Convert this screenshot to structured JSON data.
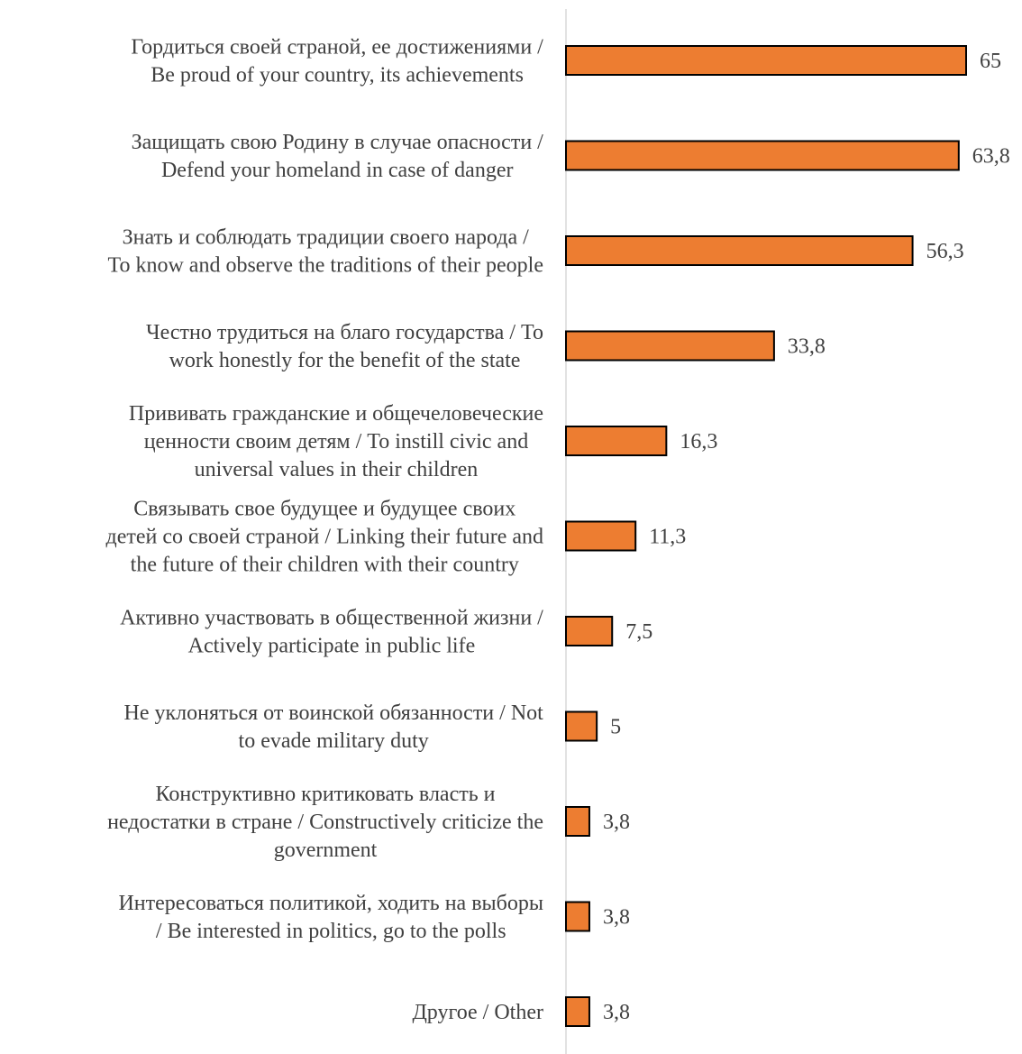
{
  "chart_data": {
    "type": "bar",
    "orientation": "horizontal",
    "title": "",
    "xlabel": "",
    "ylabel": "",
    "grid": false,
    "legend": "none",
    "bar_color": "#ED7D31",
    "bar_edge_color": "#000000",
    "axis_color": "#D9D9D9",
    "text_color": "#404040",
    "xlim": [
      0,
      65
    ],
    "categories": [
      [
        "Гордиться своей страной, ее достижениями /",
        "Be proud of your country, its achievements"
      ],
      [
        "Защищать свою Родину в случае опасности /",
        "Defend your homeland in case of danger"
      ],
      [
        "Знать и соблюдать традиции своего народа /",
        "To know and observe the traditions of their people"
      ],
      [
        "Честно трудиться на благо государства / To",
        "work honestly for the benefit of the state"
      ],
      [
        "Прививать гражданские и общечеловеческие",
        "ценности своим детям / To instill civic and",
        "universal values in their children"
      ],
      [
        "Связывать свое будущее и будущее своих",
        "детей со своей страной / Linking their future and",
        "the future of their children with their country"
      ],
      [
        "Активно участвовать в общественной жизни /",
        "Actively participate in public life"
      ],
      [
        "Не уклоняться от воинской обязанности / Not",
        "to evade military duty"
      ],
      [
        "Конструктивно критиковать власть и",
        "недостатки в стране / Constructively criticize the",
        "government"
      ],
      [
        "Интересоваться политикой, ходить на выборы",
        "/ Be interested in politics, go to the polls"
      ],
      [
        "Другое / Other"
      ]
    ],
    "values": [
      65,
      63.8,
      56.3,
      33.8,
      16.3,
      11.3,
      7.5,
      5,
      3.8,
      3.8,
      3.8
    ],
    "value_labels": [
      "65",
      "63,8",
      "56,3",
      "33,8",
      "16,3",
      "11,3",
      "7,5",
      "5",
      "3,8",
      "3,8",
      "3,8"
    ]
  }
}
